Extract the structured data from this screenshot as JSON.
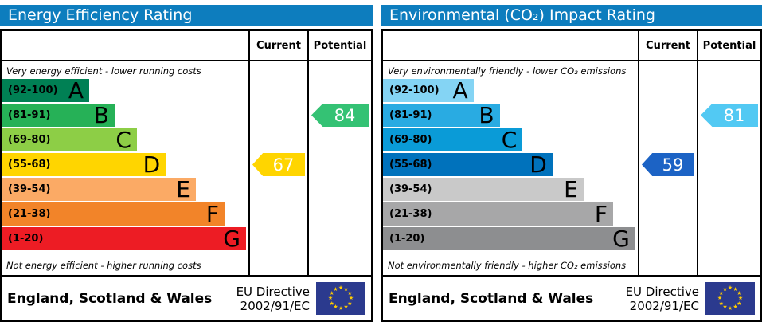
{
  "chart_data": [
    {
      "type": "bar",
      "title": "Energy Efficiency Rating",
      "categories": [
        "A (92-100)",
        "B (81-91)",
        "C (69-80)",
        "D (55-68)",
        "E (39-54)",
        "F (21-38)",
        "G (1-20)"
      ],
      "current": 67,
      "current_band": "D",
      "potential": 84,
      "potential_band": "B",
      "annotations": [
        "Very energy efficient - lower running costs",
        "Not energy efficient - higher running costs"
      ]
    },
    {
      "type": "bar",
      "title": "Environmental (CO₂) Impact Rating",
      "categories": [
        "A (92-100)",
        "B (81-91)",
        "C (69-80)",
        "D (55-68)",
        "E (39-54)",
        "F (21-38)",
        "G (1-20)"
      ],
      "current": 59,
      "current_band": "D",
      "potential": 81,
      "potential_band": "B",
      "annotations": [
        "Very environmentally friendly - lower CO₂ emissions",
        "Not environmentally friendly - higher CO₂ emissions"
      ]
    }
  ],
  "title_bar_color": "#0d7dbe",
  "panels": [
    {
      "title": "Energy Efficiency Rating",
      "columns": {
        "current": "Current",
        "potential": "Potential"
      },
      "caption_top": "Very energy efficient - lower running costs",
      "caption_bottom": "Not energy efficient - higher running costs",
      "bands": [
        {
          "range": "(92-100)",
          "letter": "A",
          "color": "#008054",
          "width_pct": 35.5
        },
        {
          "range": "(81-91)",
          "letter": "B",
          "color": "#26b157",
          "width_pct": 45.8
        },
        {
          "range": "(69-80)",
          "letter": "C",
          "color": "#8dce46",
          "width_pct": 54.8
        },
        {
          "range": "(55-68)",
          "letter": "D",
          "color": "#ffd500",
          "width_pct": 66.5
        },
        {
          "range": "(39-54)",
          "letter": "E",
          "color": "#fbaa65",
          "width_pct": 78.7
        },
        {
          "range": "(21-38)",
          "letter": "F",
          "color": "#f28429",
          "width_pct": 90.3
        },
        {
          "range": "(1-20)",
          "letter": "G",
          "color": "#ed1c24",
          "width_pct": 99.0
        }
      ],
      "current": {
        "value": "67",
        "band_index": 3,
        "color": "#ffd500"
      },
      "potential": {
        "value": "84",
        "band_index": 1,
        "color": "#34c274"
      },
      "footer": {
        "region": "England, Scotland & Wales",
        "directive_line1": "EU Directive",
        "directive_line2": "2002/91/EC"
      },
      "flag": {
        "background": "#2b3a8e",
        "star_color": "#ffcc00"
      }
    },
    {
      "title": "Environmental (CO₂) Impact Rating",
      "columns": {
        "current": "Current",
        "potential": "Potential"
      },
      "caption_top": "Very environmentally friendly - lower CO₂ emissions",
      "caption_bottom": "Not environmentally friendly - higher CO₂ emissions",
      "bands": [
        {
          "range": "(92-100)",
          "letter": "A",
          "color": "#84d4f4",
          "width_pct": 35.5
        },
        {
          "range": "(81-91)",
          "letter": "B",
          "color": "#29abe2",
          "width_pct": 45.8
        },
        {
          "range": "(69-80)",
          "letter": "C",
          "color": "#0a9bd7",
          "width_pct": 54.8
        },
        {
          "range": "(55-68)",
          "letter": "D",
          "color": "#0072bc",
          "width_pct": 66.5
        },
        {
          "range": "(39-54)",
          "letter": "E",
          "color": "#c9c9c9",
          "width_pct": 78.7
        },
        {
          "range": "(21-38)",
          "letter": "F",
          "color": "#a7a7a8",
          "width_pct": 90.3
        },
        {
          "range": "(1-20)",
          "letter": "G",
          "color": "#8d8e90",
          "width_pct": 99.0
        }
      ],
      "current": {
        "value": "59",
        "band_index": 3,
        "color": "#1c63c5"
      },
      "potential": {
        "value": "81",
        "band_index": 1,
        "color": "#52c9f3"
      },
      "footer": {
        "region": "England, Scotland & Wales",
        "directive_line1": "EU Directive",
        "directive_line2": "2002/91/EC"
      },
      "flag": {
        "background": "#2b3a8e",
        "star_color": "#ffcc00"
      }
    }
  ]
}
